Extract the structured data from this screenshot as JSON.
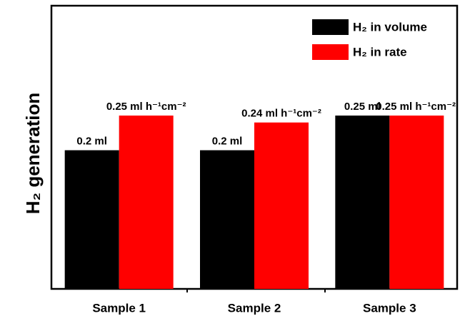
{
  "chart_data": {
    "type": "bar",
    "y_label": "H₂ generation",
    "categories": [
      "Sample 1",
      "Sample 2",
      "Sample 3"
    ],
    "series": [
      {
        "name": "H₂ in volume",
        "color": "#000000",
        "values": [
          0.2,
          0.2,
          0.25
        ],
        "value_labels": [
          "0.2 ml",
          "0.2 ml",
          "0.25 ml"
        ]
      },
      {
        "name": "H₂ in rate",
        "color": "#ff0000",
        "values": [
          0.25,
          0.24,
          0.25
        ],
        "value_labels": [
          "0.25 ml h⁻¹cm⁻²",
          "0.24 ml h⁻¹cm⁻²",
          "0.25 ml h⁻¹cm⁻²"
        ]
      }
    ],
    "legend": "upper right"
  }
}
